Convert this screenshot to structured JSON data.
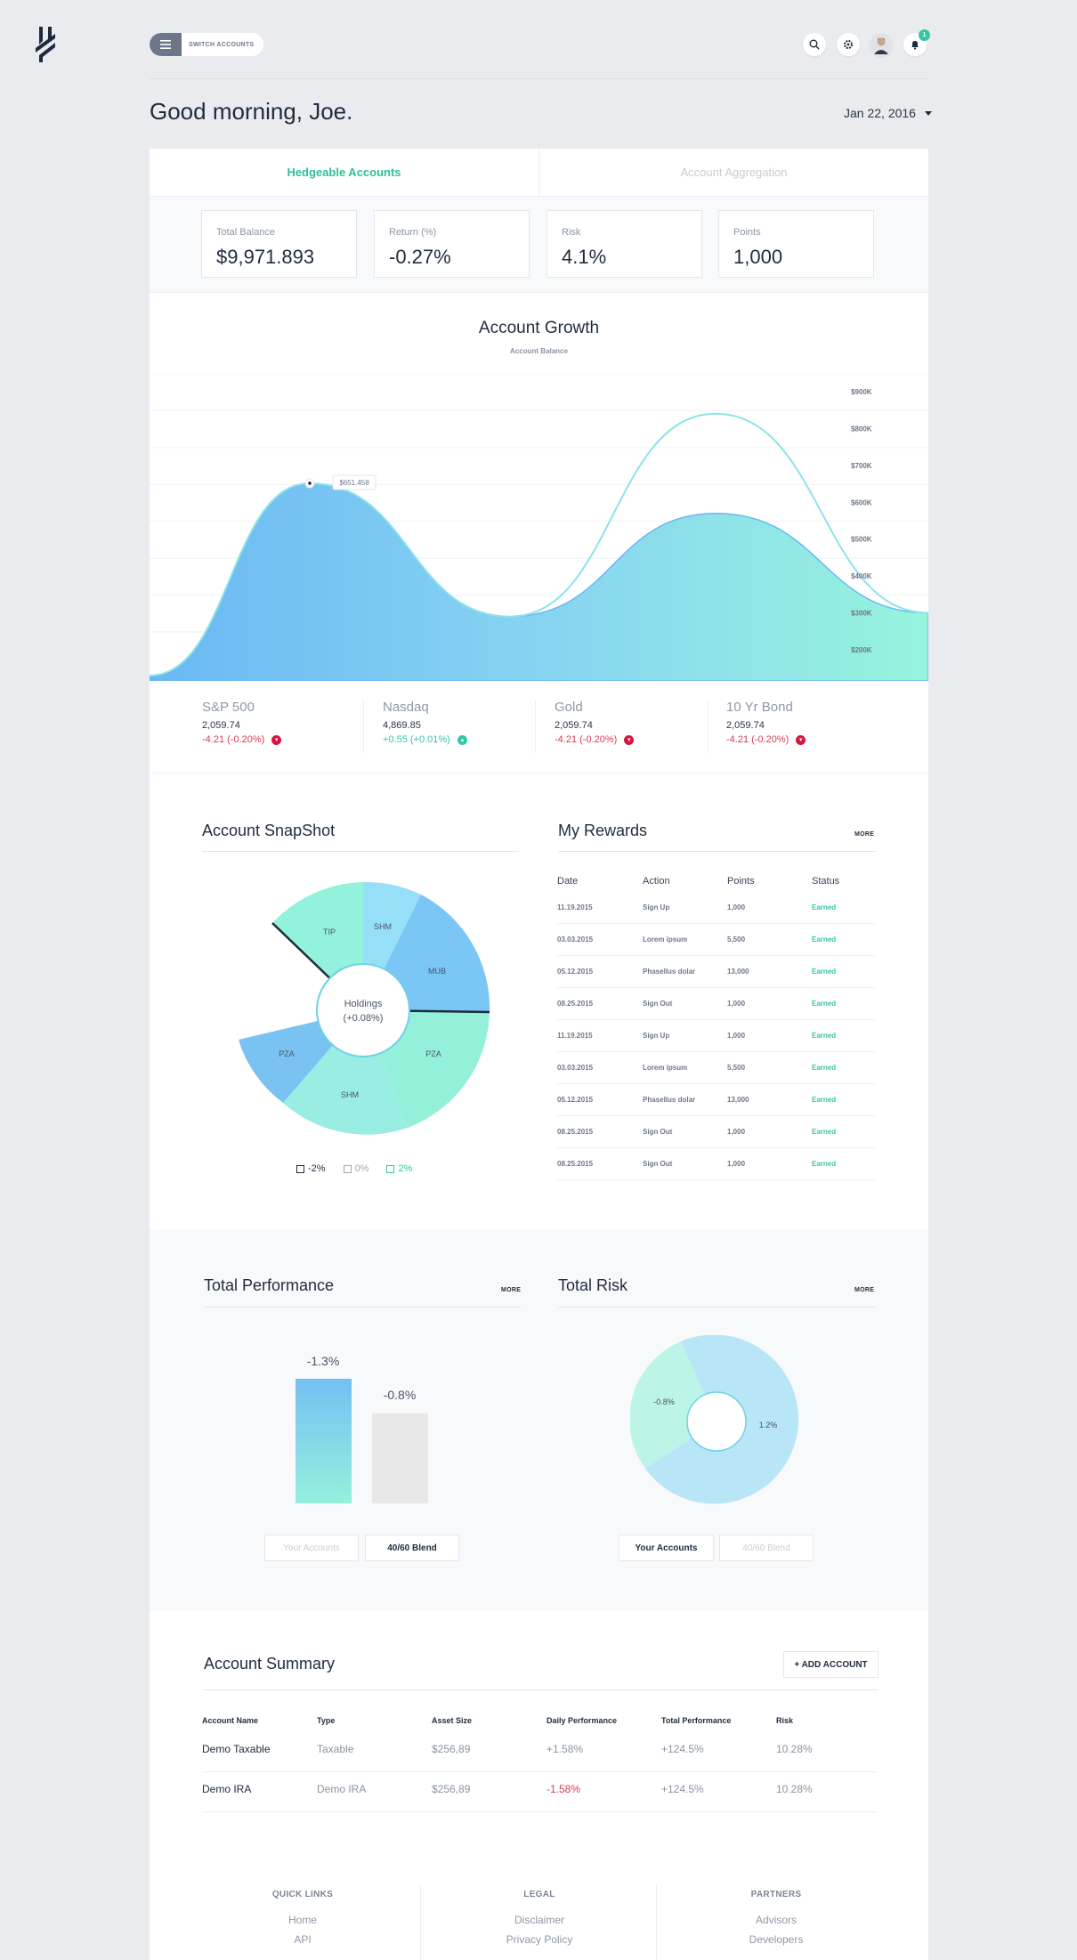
{
  "header": {
    "switch_label": "SWITCH ACCOUNTS",
    "notifications_count": "1",
    "greeting": "Good morning, Joe.",
    "date": "Jan 22, 2016"
  },
  "tabs": [
    {
      "label": "Hedgeable Accounts",
      "active": true
    },
    {
      "label": "Account Aggregation",
      "active": false
    }
  ],
  "stats": [
    {
      "label": "Total Balance",
      "value": "$9,971.893"
    },
    {
      "label": "Return (%)",
      "value": "-0.27%"
    },
    {
      "label": "Risk",
      "value": "4.1%"
    },
    {
      "label": "Points",
      "value": "1,000"
    }
  ],
  "growth": {
    "title": "Account Growth",
    "subtitle": "Account Balance",
    "tooltip": "$651.458",
    "y_ticks": [
      "$900K",
      "$800K",
      "$700K",
      "$600K",
      "$500K",
      "$400K",
      "$300K",
      "$200K"
    ]
  },
  "chart_data": {
    "type": "area",
    "title": "Account Growth",
    "subtitle": "Account Balance",
    "ylim": [
      200000,
      900000
    ],
    "y_ticks": [
      900000,
      800000,
      700000,
      600000,
      500000,
      400000,
      300000,
      200000
    ],
    "series": [
      {
        "values": [
          130000,
          651458,
          290000,
          570000,
          300000
        ]
      },
      {
        "values": [
          130000,
          651458,
          290000,
          840000,
          300000
        ]
      }
    ],
    "annotations": [
      "$651.458"
    ]
  },
  "markets": [
    {
      "name": "S&P 500",
      "price": "2,059.74",
      "change": "-4.21 (-0.20%)",
      "dir": "down"
    },
    {
      "name": "Nasdaq",
      "price": "4,869.85",
      "change": "+0.55 (+0.01%)",
      "dir": "up"
    },
    {
      "name": "Gold",
      "price": "2,059.74",
      "change": "-4.21 (-0.20%)",
      "dir": "down"
    },
    {
      "name": "10 Yr Bond",
      "price": "2,059.74",
      "change": "-4.21 (-0.20%)",
      "dir": "down"
    }
  ],
  "snapshot": {
    "title": "Account SnapShot",
    "center_line1": "Holdings",
    "center_line2": "(+0.08%)",
    "segments": [
      "SHM",
      "MUB",
      "PZA",
      "SHM",
      "PZA",
      "TIP"
    ],
    "legend": [
      "-2%",
      "0%",
      "2%"
    ]
  },
  "rewards": {
    "title": "My Rewards",
    "more": "MORE",
    "headers": [
      "Date",
      "Action",
      "Points",
      "Status"
    ],
    "rows": [
      [
        "11.19.2015",
        "Sign Up",
        "1,000",
        "Earned"
      ],
      [
        "03.03.2015",
        "Lorem ipsum",
        "5,500",
        "Earned"
      ],
      [
        "05.12.2015",
        "Phasellus dolar",
        "13,000",
        "Earned"
      ],
      [
        "08.25.2015",
        "Sign Out",
        "1,000",
        "Earned"
      ],
      [
        "11.19.2015",
        "Sign Up",
        "1,000",
        "Earned"
      ],
      [
        "03.03.2015",
        "Lorem ipsum",
        "5,500",
        "Earned"
      ],
      [
        "05.12.2015",
        "Phasellus dolar",
        "13,000",
        "Earned"
      ],
      [
        "08.25.2015",
        "Sign Out",
        "1,000",
        "Earned"
      ],
      [
        "08.25.2015",
        "Sign Out",
        "1,000",
        "Earned"
      ]
    ]
  },
  "performance": {
    "title": "Total Performance",
    "more": "MORE",
    "bar1": "-1.3%",
    "bar2": "-0.8%",
    "btn1": "Your Accounts",
    "btn2": "40/60 Blend"
  },
  "risk": {
    "title": "Total Risk",
    "more": "MORE",
    "label1": "-0.8%",
    "label2": "1.2%",
    "btn1": "Your Accounts",
    "btn2": "40/60 Blend"
  },
  "summary": {
    "title": "Account Summary",
    "add": "+ ADD ACCOUNT",
    "headers": [
      "Account Name",
      "Type",
      "Asset Size",
      "Daily Performance",
      "Total Performance",
      "Risk"
    ],
    "rows": [
      [
        "Demo Taxable",
        "Taxable",
        "$256,89",
        "+1.58%",
        "+124.5%",
        "10.28%"
      ],
      [
        "Demo IRA",
        "Demo IRA",
        "$256,89",
        "-1.58%",
        "+124.5%",
        "10.28%"
      ]
    ]
  },
  "footer": {
    "quick_title": "QUICK LINKS",
    "quick": [
      "Home",
      "API"
    ],
    "legal_title": "LEGAL",
    "legal": [
      "Disclaimer",
      "Privacy Policy"
    ],
    "partners_title": "PARTNERS",
    "partners": [
      "Advisors",
      "Developers"
    ]
  }
}
